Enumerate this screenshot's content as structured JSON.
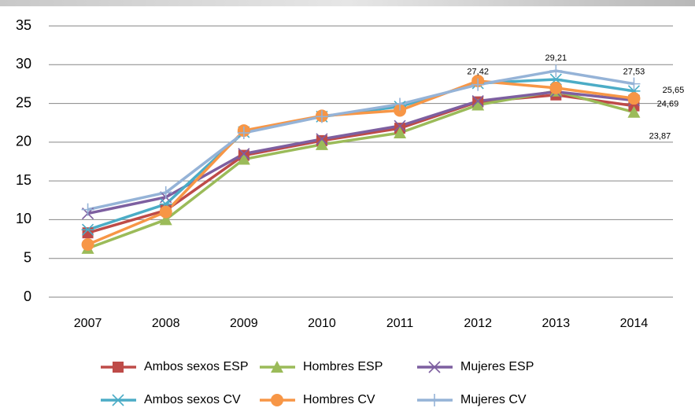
{
  "chart_data": {
    "type": "line",
    "categories": [
      "2007",
      "2008",
      "2009",
      "2010",
      "2011",
      "2012",
      "2013",
      "2014"
    ],
    "series": [
      {
        "name": "Ambos sexos ESP",
        "color": "#be4b48",
        "marker": "square",
        "values": [
          8.3,
          11.2,
          18.3,
          20.2,
          21.8,
          25.2,
          26.1,
          24.69
        ],
        "value_labels": [
          null,
          null,
          null,
          null,
          null,
          null,
          null,
          "24,69"
        ]
      },
      {
        "name": "Hombres ESP",
        "color": "#9bbb59",
        "marker": "triangle",
        "values": [
          6.3,
          10.0,
          17.8,
          19.7,
          21.2,
          24.8,
          26.6,
          23.87
        ],
        "value_labels": [
          null,
          null,
          null,
          null,
          null,
          null,
          null,
          "23,87"
        ]
      },
      {
        "name": "Mujeres ESP",
        "color": "#7d5fa0",
        "marker": "x",
        "values": [
          10.8,
          12.9,
          18.5,
          20.4,
          22.1,
          25.3,
          26.5,
          25.4
        ]
      },
      {
        "name": "Ambos sexos CV",
        "color": "#4bacc6",
        "marker": "asterisk",
        "values": [
          8.7,
          12.0,
          21.3,
          23.3,
          24.6,
          27.6,
          28.1,
          26.6
        ]
      },
      {
        "name": "Hombres CV",
        "color": "#f79646",
        "marker": "circle",
        "values": [
          6.8,
          11.0,
          21.5,
          23.4,
          24.1,
          27.9,
          27.0,
          25.65
        ],
        "value_labels": [
          null,
          null,
          null,
          null,
          null,
          null,
          null,
          "25,65"
        ]
      },
      {
        "name": "Mujeres CV",
        "color": "#95b3d7",
        "marker": "plus",
        "values": [
          11.3,
          13.5,
          21.2,
          23.3,
          24.9,
          27.42,
          29.21,
          27.53
        ],
        "value_labels": [
          null,
          null,
          null,
          null,
          null,
          "27,42",
          "29,21",
          "27,53"
        ]
      }
    ],
    "ylim": [
      0,
      35
    ],
    "yticks": [
      0,
      5,
      10,
      15,
      20,
      25,
      30,
      35
    ],
    "grid": true,
    "legend": "bottom"
  }
}
